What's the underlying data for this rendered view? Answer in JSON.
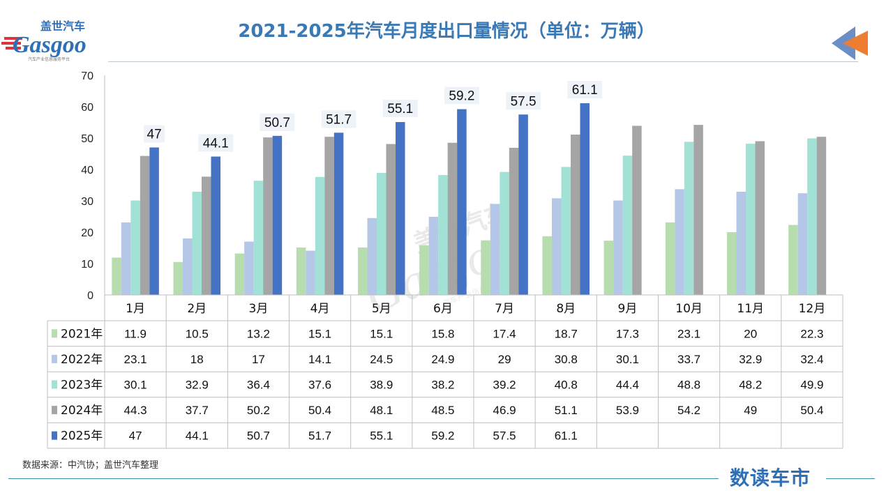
{
  "header": {
    "title": "2021-2025年汽车月度出口量情况（单位：万辆）",
    "logo_cn": "盖世汽车",
    "logo_en": "Gasgoo",
    "logo_sub": "汽车产业信息服务平台"
  },
  "footer": {
    "source": "数据来源：中汽协；盖世汽车整理",
    "brand": "数读车市"
  },
  "watermark": {
    "cn": "盖世汽车",
    "en": "Gasgoo",
    "sub": "汽车产业信息服务平台"
  },
  "colors": {
    "s2021": "#b7dcae",
    "s2022": "#b4c7e7",
    "s2023": "#a2e2d6",
    "s2024": "#a5a5a5",
    "s2025": "#4472c4",
    "title": "#3a79b4",
    "arrow_blue": "#6b8fc5",
    "arrow_orange": "#ed7d31"
  },
  "chart_data": {
    "type": "bar",
    "title": "2021-2025年汽车月度出口量情况（单位：万辆）",
    "xlabel": "",
    "ylabel": "",
    "ylim": [
      0,
      70
    ],
    "yticks": [
      0,
      10,
      20,
      30,
      40,
      50,
      60,
      70
    ],
    "categories": [
      "1月",
      "2月",
      "3月",
      "4月",
      "5月",
      "6月",
      "7月",
      "8月",
      "9月",
      "10月",
      "11月",
      "12月"
    ],
    "series": [
      {
        "name": "2021年",
        "values": [
          11.9,
          10.5,
          13.2,
          15.1,
          15.1,
          15.8,
          17.4,
          18.7,
          17.3,
          23.1,
          20,
          22.3
        ],
        "display": [
          "11.9",
          "10.5",
          "13.2",
          "15.1",
          "15.1",
          "15.8",
          "17.4",
          "18.7",
          "17.3",
          "23.1",
          "20",
          "22.3"
        ]
      },
      {
        "name": "2022年",
        "values": [
          23.1,
          18,
          17,
          14.1,
          24.5,
          24.9,
          29,
          30.8,
          30.1,
          33.7,
          32.9,
          32.4
        ],
        "display": [
          "23.1",
          "18",
          "17",
          "14.1",
          "24.5",
          "24.9",
          "29",
          "30.8",
          "30.1",
          "33.7",
          "32.9",
          "32.4"
        ]
      },
      {
        "name": "2023年",
        "values": [
          30.1,
          32.9,
          36.4,
          37.6,
          38.9,
          38.2,
          39.2,
          40.8,
          44.4,
          48.8,
          48.2,
          49.9
        ],
        "display": [
          "30.1",
          "32.9",
          "36.4",
          "37.6",
          "38.9",
          "38.2",
          "39.2",
          "40.8",
          "44.4",
          "48.8",
          "48.2",
          "49.9"
        ]
      },
      {
        "name": "2024年",
        "values": [
          44.3,
          37.7,
          50.2,
          50.4,
          48.1,
          48.5,
          46.9,
          51.1,
          53.9,
          54.2,
          49,
          50.4
        ],
        "display": [
          "44.3",
          "37.7",
          "50.2",
          "50.4",
          "48.1",
          "48.5",
          "46.9",
          "51.1",
          "53.9",
          "54.2",
          "49",
          "50.4"
        ]
      },
      {
        "name": "2025年",
        "values": [
          47,
          44.1,
          50.7,
          51.7,
          55.1,
          59.2,
          57.5,
          61.1,
          null,
          null,
          null,
          null
        ],
        "display": [
          "47",
          "44.1",
          "50.7",
          "51.7",
          "55.1",
          "59.2",
          "57.5",
          "61.1",
          "",
          "",
          "",
          ""
        ],
        "data_labels": [
          "47",
          "44.1",
          "50.7",
          "51.7",
          "55.1",
          "59.2",
          "57.5",
          "61.1"
        ]
      }
    ],
    "legend": "data-table-below",
    "grid": false
  }
}
